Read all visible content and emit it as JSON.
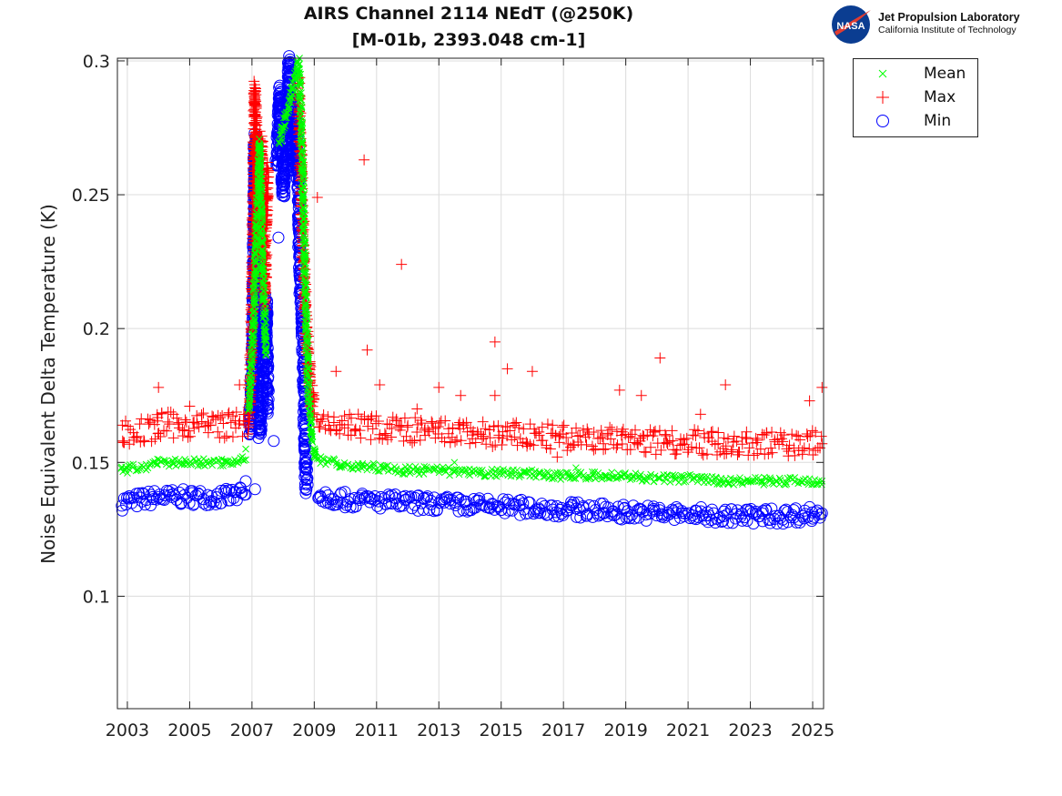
{
  "chart_data": {
    "type": "scatter",
    "title": "AIRS Channel 2114 NEdT (@250K)",
    "subtitle": "[M-01b, 2393.048 cm-1]",
    "xlabel": "",
    "ylabel": "Noise Equivalent Delta Temperature (K)",
    "xlim": [
      2002.68,
      2025.35
    ],
    "ylim": [
      0.058,
      0.301
    ],
    "xticks": [
      2003,
      2005,
      2007,
      2009,
      2011,
      2013,
      2015,
      2017,
      2019,
      2021,
      2023,
      2025
    ],
    "yticks": [
      0.1,
      0.15,
      0.2,
      0.25,
      0.3
    ],
    "ytick_labels": [
      "0.1",
      "0.15",
      "0.2",
      "0.25",
      "0.3"
    ],
    "grid": true,
    "legend_position": "outside-top-right",
    "series": [
      {
        "name": "Mean",
        "marker": "x",
        "color": "#00ff00",
        "spread": 0.0015,
        "segments": [
          [
            [
              2002.8,
              0.148
            ],
            [
              2003.4,
              0.148
            ],
            [
              2003.9,
              0.149
            ],
            [
              2004.0,
              0.15
            ],
            [
              2005.0,
              0.15
            ],
            [
              2006.0,
              0.15
            ],
            [
              2006.8,
              0.151
            ]
          ],
          [
            [
              2006.9,
              0.17
            ],
            [
              2007.05,
              0.2
            ],
            [
              2007.15,
              0.24
            ],
            [
              2007.25,
              0.27
            ],
            [
              2007.35,
              0.22
            ],
            [
              2007.45,
              0.19
            ]
          ],
          [
            [
              2007.9,
              0.27
            ],
            [
              2008.1,
              0.28
            ],
            [
              2008.3,
              0.29
            ],
            [
              2008.5,
              0.3
            ],
            [
              2008.6,
              0.27
            ],
            [
              2008.7,
              0.22
            ],
            [
              2008.8,
              0.18
            ],
            [
              2008.9,
              0.16
            ],
            [
              2009.05,
              0.152
            ]
          ],
          [
            [
              2009.1,
              0.151
            ],
            [
              2010.0,
              0.149
            ],
            [
              2011.0,
              0.148
            ],
            [
              2012.0,
              0.147
            ],
            [
              2013.0,
              0.147
            ],
            [
              2014.0,
              0.146
            ],
            [
              2015.0,
              0.146
            ],
            [
              2016.0,
              0.146
            ],
            [
              2017.0,
              0.145
            ],
            [
              2018.0,
              0.145
            ],
            [
              2019.0,
              0.145
            ],
            [
              2020.0,
              0.144
            ],
            [
              2021.0,
              0.144
            ],
            [
              2022.0,
              0.143
            ],
            [
              2023.0,
              0.143
            ],
            [
              2024.0,
              0.143
            ],
            [
              2025.3,
              0.143
            ]
          ]
        ],
        "outliers": [
          [
            2003.0,
            0.146
          ],
          [
            2006.8,
            0.155
          ],
          [
            2013.5,
            0.15
          ],
          [
            2017.4,
            0.148
          ]
        ]
      },
      {
        "name": "Max",
        "marker": "+",
        "color": "#ff0000",
        "spread": 0.005,
        "segments": [
          [
            [
              2002.8,
              0.161
            ],
            [
              2003.9,
              0.162
            ],
            [
              2004.0,
              0.164
            ],
            [
              2005.0,
              0.164
            ],
            [
              2006.0,
              0.164
            ],
            [
              2006.8,
              0.164
            ]
          ],
          [
            [
              2006.9,
              0.165
            ],
            [
              2007.0,
              0.2
            ],
            [
              2007.1,
              0.29
            ],
            [
              2007.2,
              0.23
            ],
            [
              2007.3,
              0.27
            ],
            [
              2007.4,
              0.21
            ],
            [
              2007.5,
              0.26
            ]
          ],
          [
            [
              2008.5,
              0.29
            ],
            [
              2008.6,
              0.25
            ],
            [
              2008.7,
              0.21
            ],
            [
              2008.8,
              0.19
            ],
            [
              2008.9,
              0.175
            ],
            [
              2009.0,
              0.168
            ]
          ],
          [
            [
              2009.1,
              0.165
            ],
            [
              2010.0,
              0.164
            ],
            [
              2011.0,
              0.163
            ],
            [
              2012.0,
              0.162
            ],
            [
              2013.0,
              0.161
            ],
            [
              2014.0,
              0.161
            ],
            [
              2015.0,
              0.16
            ],
            [
              2016.0,
              0.16
            ],
            [
              2017.0,
              0.159
            ],
            [
              2018.0,
              0.159
            ],
            [
              2019.0,
              0.158
            ],
            [
              2020.0,
              0.158
            ],
            [
              2021.0,
              0.158
            ],
            [
              2022.0,
              0.157
            ],
            [
              2023.0,
              0.157
            ],
            [
              2024.0,
              0.157
            ],
            [
              2025.3,
              0.157
            ]
          ]
        ],
        "outliers": [
          [
            2004.0,
            0.178
          ],
          [
            2005.0,
            0.171
          ],
          [
            2006.6,
            0.179
          ],
          [
            2009.1,
            0.249
          ],
          [
            2009.7,
            0.184
          ],
          [
            2010.6,
            0.263
          ],
          [
            2010.7,
            0.192
          ],
          [
            2011.1,
            0.179
          ],
          [
            2011.8,
            0.224
          ],
          [
            2012.3,
            0.17
          ],
          [
            2013.0,
            0.178
          ],
          [
            2013.7,
            0.175
          ],
          [
            2014.8,
            0.195
          ],
          [
            2014.8,
            0.175
          ],
          [
            2015.2,
            0.185
          ],
          [
            2016.0,
            0.184
          ],
          [
            2016.8,
            0.152
          ],
          [
            2018.8,
            0.177
          ],
          [
            2019.5,
            0.175
          ],
          [
            2020.1,
            0.189
          ],
          [
            2021.4,
            0.168
          ],
          [
            2022.2,
            0.179
          ],
          [
            2024.9,
            0.173
          ],
          [
            2025.3,
            0.178
          ]
        ]
      },
      {
        "name": "Min",
        "marker": "o",
        "color": "#0000ff",
        "spread": 0.003,
        "segments": [
          [
            [
              2002.8,
              0.135
            ],
            [
              2004.0,
              0.137
            ],
            [
              2005.0,
              0.137
            ],
            [
              2006.0,
              0.137
            ],
            [
              2006.8,
              0.138
            ]
          ],
          [
            [
              2006.95,
              0.16
            ],
            [
              2007.05,
              0.2
            ],
            [
              2007.1,
              0.27
            ],
            [
              2007.15,
              0.19
            ],
            [
              2007.25,
              0.16
            ],
            [
              2007.35,
              0.18
            ],
            [
              2007.45,
              0.21
            ],
            [
              2007.5,
              0.17
            ]
          ],
          [
            [
              2007.8,
              0.26
            ],
            [
              2007.9,
              0.29
            ],
            [
              2008.0,
              0.25
            ],
            [
              2008.1,
              0.27
            ],
            [
              2008.2,
              0.3
            ],
            [
              2008.3,
              0.26
            ],
            [
              2008.4,
              0.28
            ],
            [
              2008.5,
              0.25
            ],
            [
              2008.55,
              0.22
            ],
            [
              2008.65,
              0.19
            ],
            [
              2008.7,
              0.16
            ],
            [
              2008.75,
              0.14
            ]
          ],
          [
            [
              2009.1,
              0.138
            ],
            [
              2010.0,
              0.136
            ],
            [
              2012.0,
              0.135
            ],
            [
              2014.0,
              0.134
            ],
            [
              2016.0,
              0.133
            ],
            [
              2018.0,
              0.132
            ],
            [
              2020.0,
              0.131
            ],
            [
              2022.0,
              0.13
            ],
            [
              2024.0,
              0.13
            ],
            [
              2025.3,
              0.131
            ]
          ]
        ],
        "outliers": [
          [
            2007.1,
            0.14
          ],
          [
            2007.7,
            0.158
          ],
          [
            2007.85,
            0.234
          ],
          [
            2006.8,
            0.143
          ]
        ]
      }
    ]
  },
  "logo": {
    "line1": "Jet Propulsion Laboratory",
    "line2": "California Institute of Technology",
    "badge": "NASA"
  }
}
